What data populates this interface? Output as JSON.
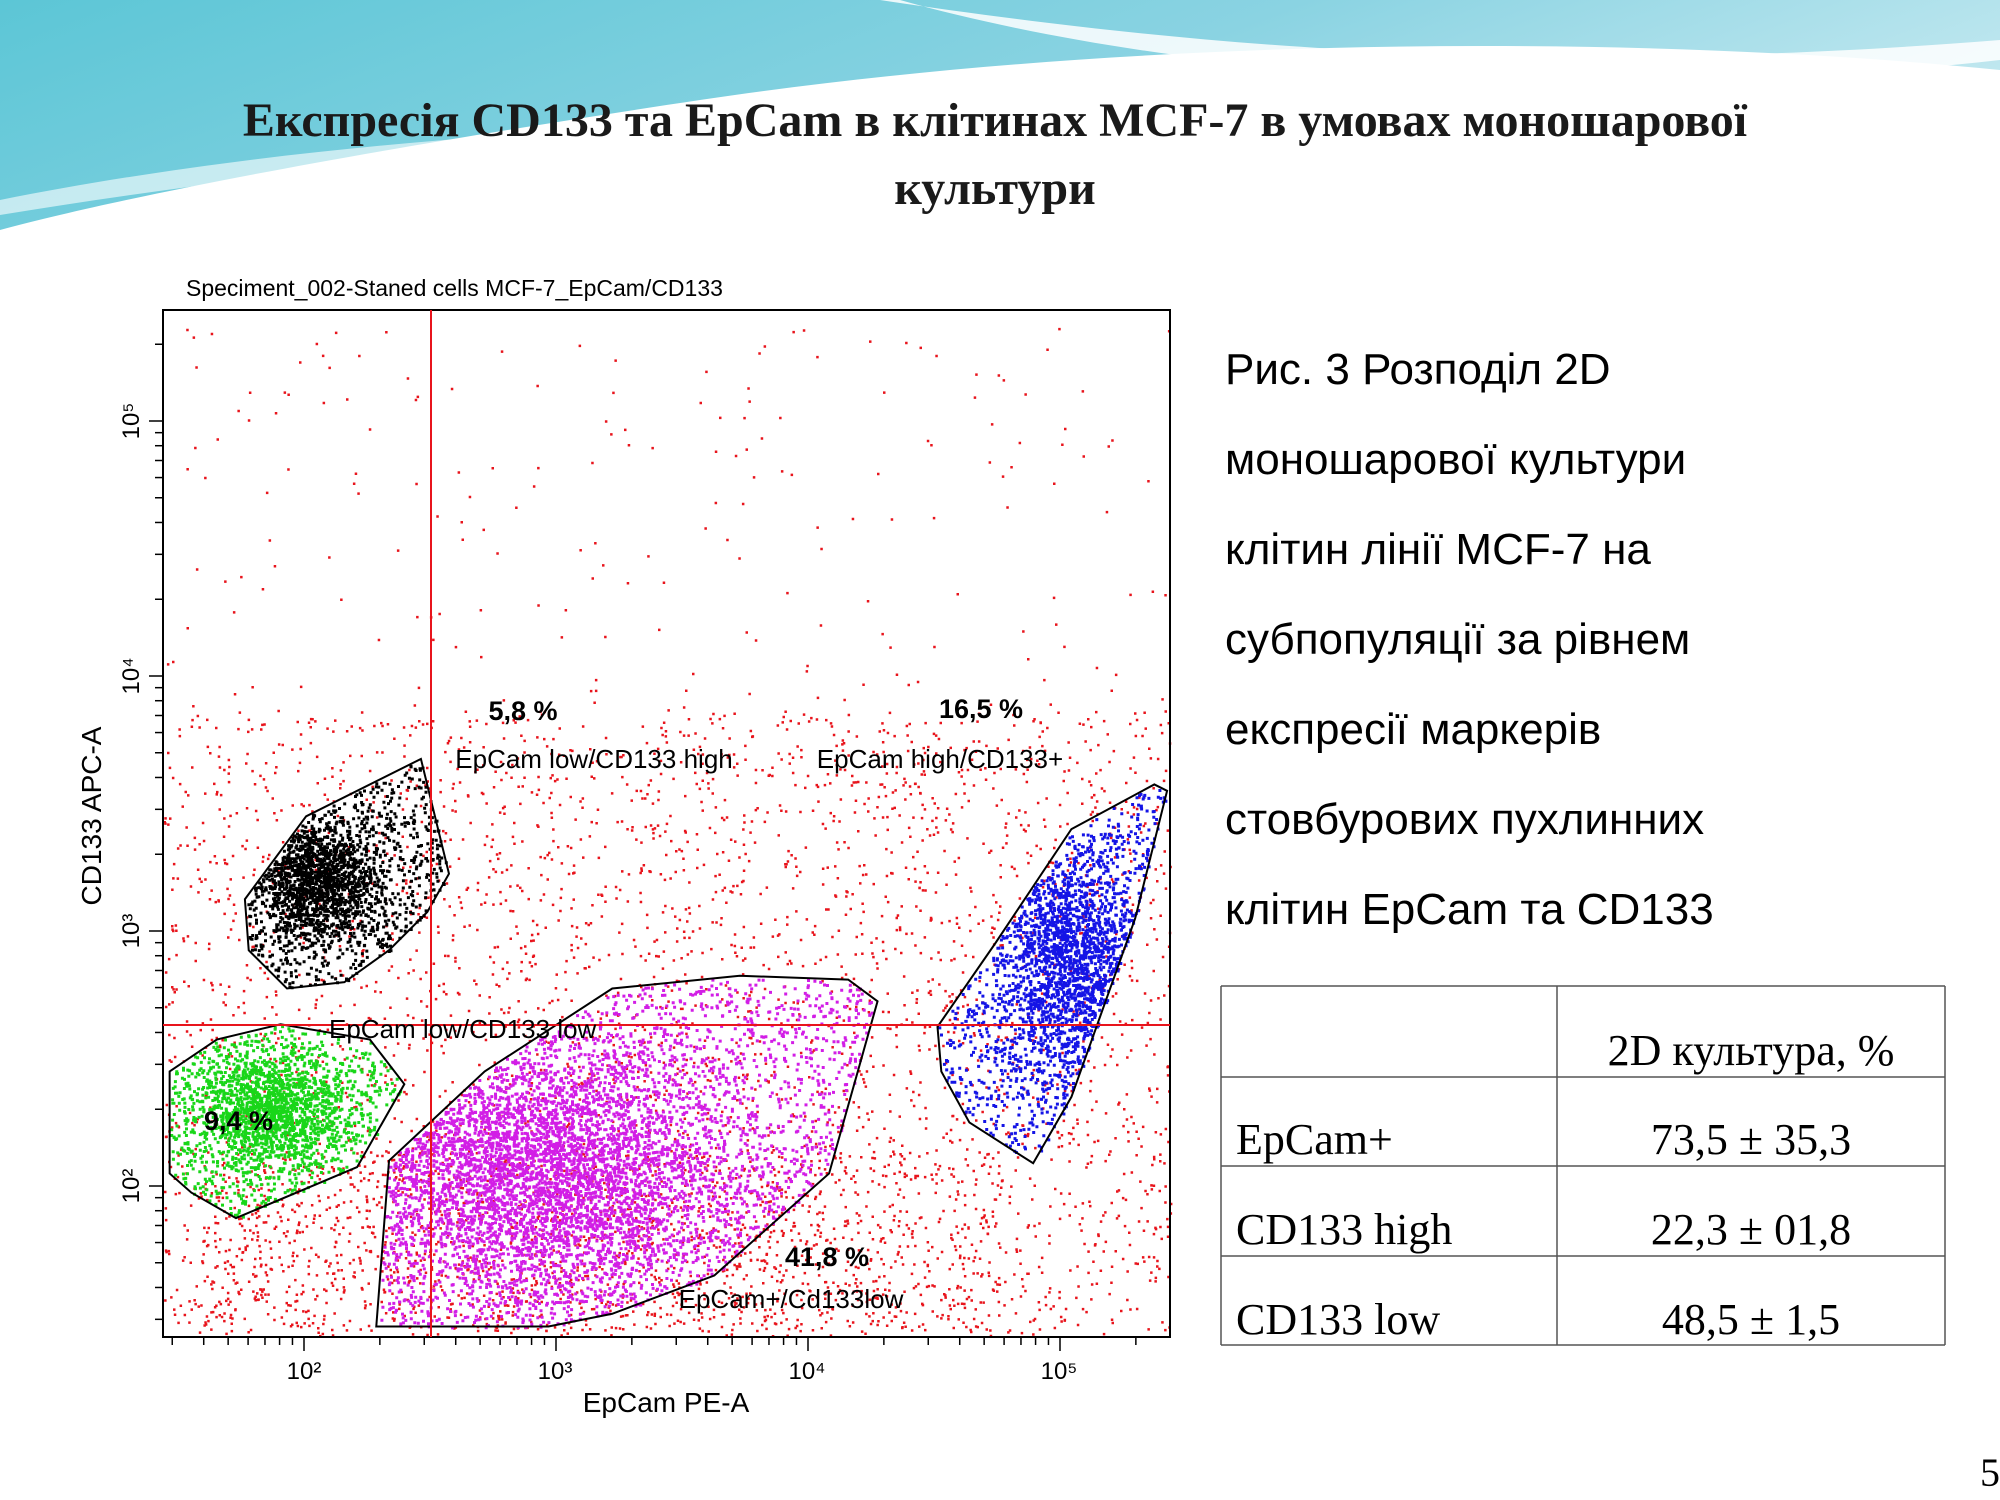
{
  "header": {
    "title_lines": [
      "Експресія CD133 та EpCam в клітинах MCF-7 в умовах моношарової",
      "культури"
    ]
  },
  "figure": {
    "title": "Speciment_002-Staned cells MCF-7_EpCam/CD133",
    "x_label": "EpCam PE-A",
    "y_label": "CD133 APC-A",
    "x_ticks": [
      "10²",
      "10³",
      "10⁴",
      "10⁵"
    ],
    "y_ticks": [
      "10²",
      "10³",
      "10⁴",
      "10⁵"
    ],
    "gates": [
      {
        "percent": "5,8 %",
        "label": "EpCam low/CD133 high"
      },
      {
        "percent": "16,5 %",
        "label": "EpCam high/CD133+"
      },
      {
        "percent": "9,4 %",
        "label": "EpCam low/CD133 low"
      },
      {
        "percent": "41,8 %",
        "label": "EpCam+/Cd133low"
      }
    ]
  },
  "caption_lines": [
    "Рис. 3 Розподіл 2D",
    "моношарової культури",
    "клітин лінії MCF-7 на",
    "субпопуляції за рівнем",
    "експресії маркерів",
    "стовбурових пухлинних",
    "клітин EpCam та CD133"
  ],
  "table": {
    "column": "2D культура, %",
    "rows": [
      [
        "EpCam+",
        "73,5 ± 35,3"
      ],
      [
        "CD133 high",
        "22,3 ± 01,8"
      ],
      [
        "CD133 low",
        "48,5 ± 1,5"
      ]
    ]
  },
  "page_number": "5"
}
